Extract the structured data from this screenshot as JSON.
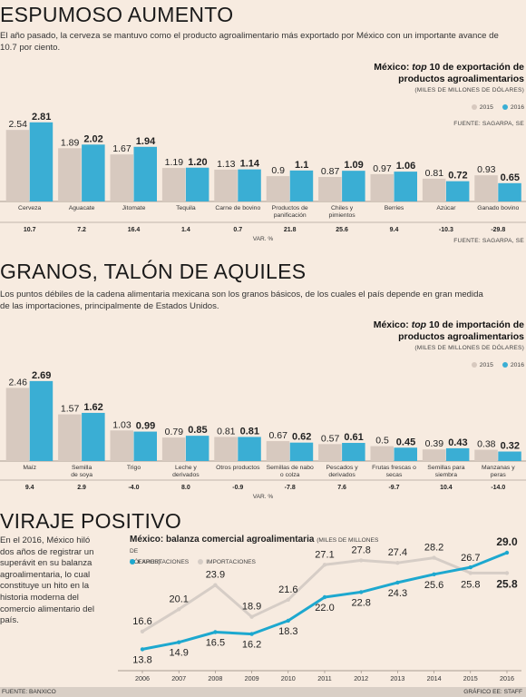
{
  "section1": {
    "headline": "ESPUMOSO AUMENTO",
    "deck": "El año pasado, la cerveza se mantuvo como el producto agroalimentario más exportado por México con un importante avance de 10.7 por ciento.",
    "title_prefix": "México: ",
    "title_italic": "top",
    "title_rest": " 10 de exportación de",
    "title_line2": "productos agroalimentarios",
    "units": "(MILES DE MILLONES DE DÓLARES)",
    "source_top": "FUENTE: SAGARPA, SE",
    "source_bottom": "FUENTE: SAGARPA, SE",
    "var_label": "VAR. %"
  },
  "section2": {
    "headline": "GRANOS, TALÓN DE AQUILES",
    "deck": "Los puntos débiles de la cadena alimentaria mexicana son los granos básicos, de los cuales el país depende en gran medida de las importaciones, principalmente de Estados Unidos.",
    "title_prefix": "México: ",
    "title_italic": "top",
    "title_rest": " 10 de importación de",
    "title_line2": "productos agroalimentarios",
    "units": "(MILES DE MILLONES DE DÓLARES)",
    "var_label": "VAR. %"
  },
  "section3": {
    "headline": "VIRAJE POSITIVO",
    "side_text": "En el 2016, México hiló dos años de registrar un superávit en su balanza agroalimentaria, lo cual constituye un hito en la historia moderna del comercio alimentario del país.",
    "title": "México: balanza comercial agroalimentaria",
    "units_a": "(MILES DE MILLONES DE",
    "units_b": "DÓLARES)"
  },
  "legend": {
    "year_a": "2015",
    "year_b": "2016"
  },
  "footer": {
    "left": "FUENTE: BANXICO",
    "right": "GRÁFICO EE: STAFF"
  },
  "colors": {
    "bar_2015": "#d7c9bf",
    "bar_2016": "#3aaed4",
    "exports": "#1da8cf",
    "imports": "#d6cdc6",
    "background": "#f7ebe0"
  },
  "chart_data": [
    {
      "type": "bar",
      "categories": [
        "Cerveza",
        "Aguacate",
        "Jitomate",
        "Tequila",
        "Carne de bovino",
        "Productos de panificación",
        "Chiles y pimientos",
        "Berries",
        "Azúcar",
        "Ganado bovino"
      ],
      "category_lines": [
        [
          "Cerveza"
        ],
        [
          "Aguacate"
        ],
        [
          "Jitomate"
        ],
        [
          "Tequila"
        ],
        [
          "Carne de bovino"
        ],
        [
          "Productos de",
          "panificación"
        ],
        [
          "Chiles y",
          "pimientos"
        ],
        [
          "Berries"
        ],
        [
          "Azúcar"
        ],
        [
          "Ganado bovino"
        ]
      ],
      "series": [
        {
          "name": "2015",
          "values": [
            2.54,
            1.89,
            1.67,
            1.19,
            1.13,
            0.9,
            0.87,
            0.97,
            0.81,
            0.93
          ],
          "labels": [
            "2.54",
            "1.89",
            "1.67",
            "1.19",
            "1.13",
            "0.9",
            "0.87",
            "0.97",
            "0.81",
            "0.93"
          ]
        },
        {
          "name": "2016",
          "values": [
            2.81,
            2.02,
            1.94,
            1.2,
            1.14,
            1.1,
            1.09,
            1.06,
            0.72,
            0.65
          ],
          "labels": [
            "2.81",
            "2.02",
            "1.94",
            "1.20",
            "1.14",
            "1.1",
            "1.09",
            "1.06",
            "0.72",
            "0.65"
          ]
        }
      ],
      "variation_labels": [
        "10.7",
        "7.2",
        "16.4",
        "1.4",
        "0.7",
        "21.8",
        "25.6",
        "9.4",
        "-10.3",
        "-29.8"
      ],
      "ylim": [
        0,
        2.9
      ]
    },
    {
      "type": "bar",
      "categories": [
        "Maíz",
        "Semilla de soya",
        "Trigo",
        "Leche y derivados",
        "Otros productos",
        "Semillas de nabo o colza",
        "Pescados y derivados",
        "Frutas frescas o secas",
        "Semillas para siembra",
        "Manzanas y peras"
      ],
      "category_lines": [
        [
          "Maíz"
        ],
        [
          "Semilla",
          "de soya"
        ],
        [
          "Trigo"
        ],
        [
          "Leche y",
          "derivados"
        ],
        [
          "Otros productos"
        ],
        [
          "Semillas de nabo",
          "o colza"
        ],
        [
          "Pescados y",
          "derivados"
        ],
        [
          "Frutas frescas o",
          "secas"
        ],
        [
          "Semillas para",
          "siembra"
        ],
        [
          "Manzanas y",
          "peras"
        ]
      ],
      "series": [
        {
          "name": "2015",
          "values": [
            2.46,
            1.57,
            1.03,
            0.79,
            0.81,
            0.67,
            0.57,
            0.5,
            0.39,
            0.38
          ],
          "labels": [
            "2.46",
            "1.57",
            "1.03",
            "0.79",
            "0.81",
            "0.67",
            "0.57",
            "0.5",
            "0.39",
            "0.38"
          ]
        },
        {
          "name": "2016",
          "values": [
            2.69,
            1.62,
            0.99,
            0.85,
            0.81,
            0.62,
            0.61,
            0.45,
            0.43,
            0.32
          ],
          "labels": [
            "2.69",
            "1.62",
            "0.99",
            "0.85",
            "0.81",
            "0.62",
            "0.61",
            "0.45",
            "0.43",
            "0.32"
          ]
        }
      ],
      "variation_labels": [
        "9.4",
        "2.9",
        "-4.0",
        "8.0",
        "-0.9",
        "-7.8",
        "7.6",
        "-9.7",
        "10.4",
        "-14.0"
      ],
      "ylim": [
        0,
        2.9
      ]
    },
    {
      "type": "line",
      "x": [
        "2006",
        "2007",
        "2008",
        "2009",
        "2010",
        "2011",
        "2012",
        "2013",
        "2014",
        "2015",
        "2016"
      ],
      "series": [
        {
          "name": "EXPORTACIONES",
          "values": [
            13.8,
            14.9,
            16.5,
            16.2,
            18.3,
            22.0,
            22.8,
            24.3,
            25.6,
            26.7,
            29.0
          ],
          "labels": [
            "13.8",
            "14.9",
            "16.5",
            "16.2",
            "18.3",
            "22.0",
            "22.8",
            "24.3",
            "25.6",
            "26.7",
            "29.0"
          ]
        },
        {
          "name": "IMPORTACIONES",
          "values": [
            16.6,
            20.1,
            23.9,
            18.9,
            21.6,
            27.1,
            27.8,
            27.4,
            28.2,
            25.8,
            25.8
          ],
          "labels": [
            "16.6",
            "20.1",
            "23.9",
            "18.9",
            "21.6",
            "27.1",
            "27.8",
            "27.4",
            "28.2",
            "25.8",
            "25.8"
          ]
        }
      ],
      "ylim": [
        12,
        31
      ]
    }
  ]
}
